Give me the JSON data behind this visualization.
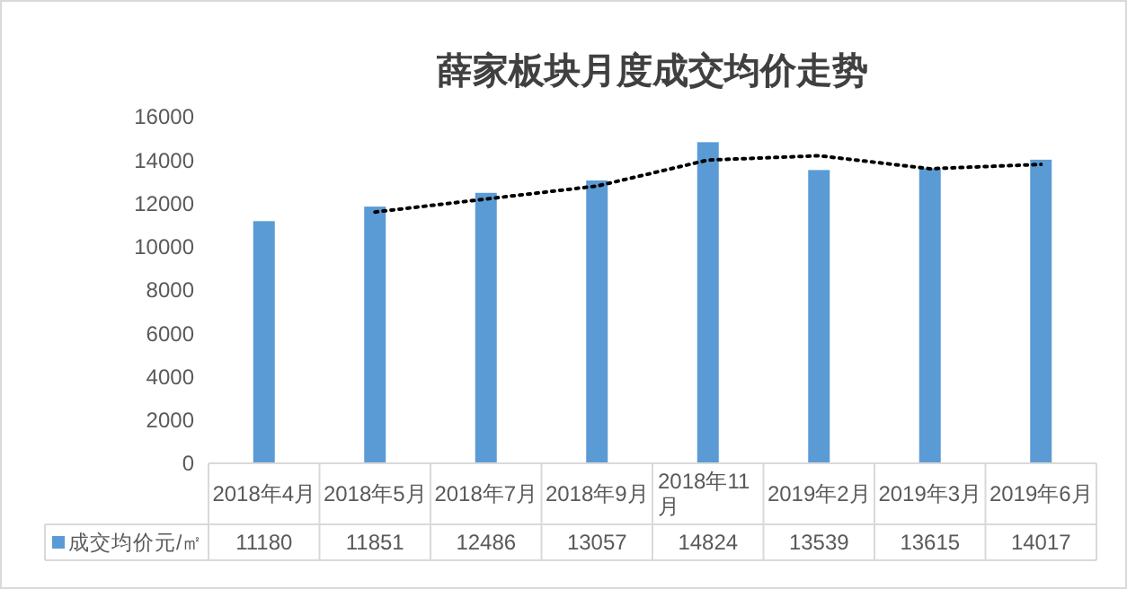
{
  "chart_data": {
    "type": "bar",
    "title": "薛家板块月度成交均价走势",
    "categories": [
      "2018年4月",
      "2018年5月",
      "2018年7月",
      "2018年9月",
      "2018年11月",
      "2019年2月",
      "2019年3月",
      "2019年6月"
    ],
    "series": [
      {
        "name": "成交均价元/㎡",
        "color": "#5b9bd5",
        "values": [
          11180,
          11851,
          12486,
          13057,
          14824,
          13539,
          13615,
          14017
        ],
        "value_labels": [
          "11180",
          "11851",
          "12486",
          "13057",
          "14824",
          "13539",
          "13615",
          "14017"
        ]
      },
      {
        "type": "line",
        "color": "#000000",
        "line_style": "dotted",
        "marker": "none",
        "x": [
          "2018年5月",
          "2018年7月",
          "2018年9月",
          "2018年11月",
          "2019年2月",
          "2019年3月",
          "2019年6月"
        ],
        "values": [
          11600,
          12200,
          12800,
          14000,
          14200,
          13600,
          13800
        ]
      }
    ],
    "ylim": [
      0,
      16000
    ],
    "yticks": [
      0,
      2000,
      4000,
      6000,
      8000,
      10000,
      12000,
      14000,
      16000
    ],
    "grid": false,
    "legend": "bottom"
  }
}
